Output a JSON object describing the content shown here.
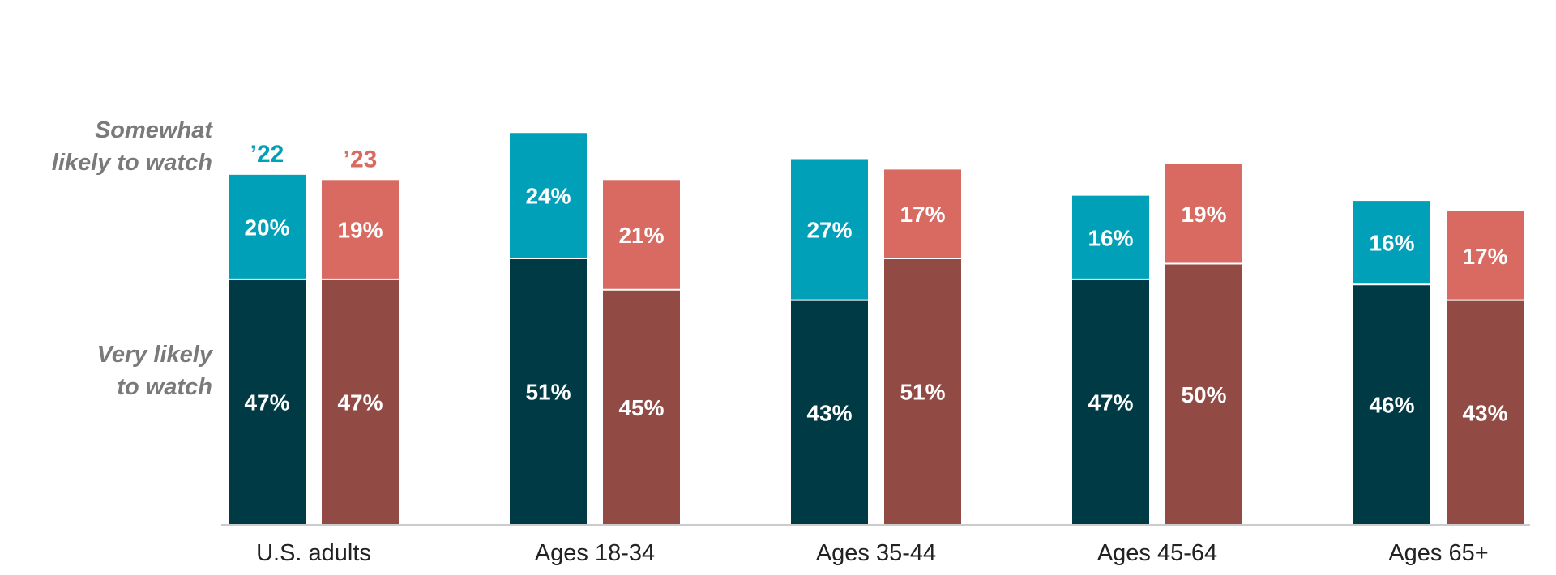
{
  "chart_data": {
    "type": "bar",
    "stacked": true,
    "title": "",
    "xlabel": "",
    "ylabel": "",
    "ylim": [
      0,
      75
    ],
    "grid": false,
    "categories": [
      "U.S. adults",
      "Ages 18-34",
      "Ages 35-44",
      "Ages 45-64",
      "Ages 65+"
    ],
    "years": [
      "’22",
      "’23"
    ],
    "stack_labels": [
      "Very likely to watch",
      "Somewhat likely to watch"
    ],
    "side_labels": {
      "somewhat": [
        "Somewhat",
        "likely to watch"
      ],
      "very": [
        "Very likely",
        "to watch"
      ]
    },
    "series": [
      {
        "name": "’22",
        "very": [
          47,
          51,
          43,
          47,
          46
        ],
        "somewhat": [
          20,
          24,
          27,
          16,
          16
        ]
      },
      {
        "name": "’23",
        "very": [
          47,
          45,
          51,
          50,
          43
        ],
        "somewhat": [
          19,
          21,
          17,
          19,
          17
        ]
      }
    ],
    "colors": {
      "very_22": "#003a44",
      "somewhat_22": "#00a0b9",
      "very_23": "#924a44",
      "somewhat_23": "#d86a62",
      "legend_22": "#00a0b9",
      "legend_23": "#d86a62",
      "axis": "#cccccc"
    }
  }
}
